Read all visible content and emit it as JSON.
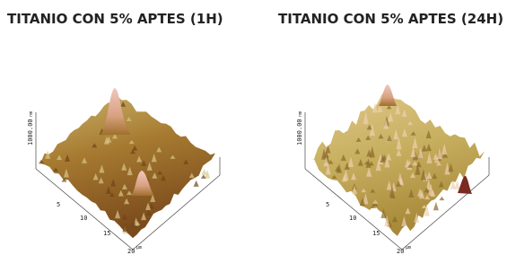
{
  "panels": [
    {
      "title": "TITANIO CON 5% APTES (1H)",
      "z_label": "1000.00",
      "z_unit": "nm",
      "x_ticks": [
        "5",
        "10",
        "15",
        "20"
      ],
      "x_unit": "µm"
    },
    {
      "title": "TITANIO CON 5% APTES (24H)",
      "z_label": "1000.00",
      "z_unit": "nm",
      "x_ticks": [
        "5",
        "10",
        "15",
        "20"
      ],
      "x_unit": "µm"
    }
  ]
}
